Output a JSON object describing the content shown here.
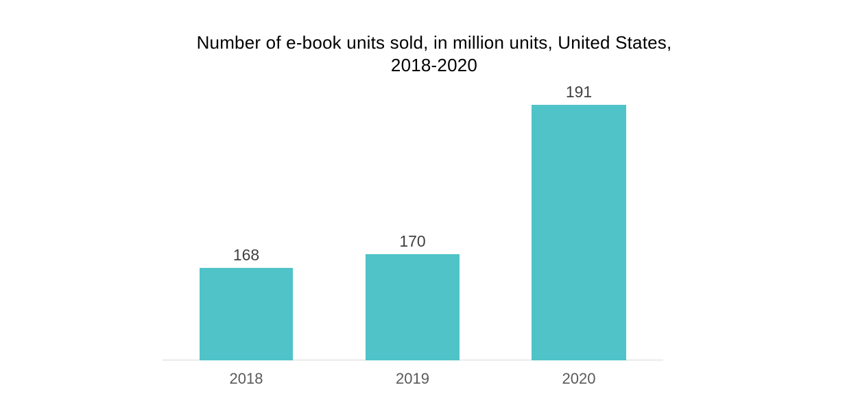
{
  "chart_data": {
    "type": "bar",
    "title": "Number of e-book units sold, in million units, United States, 2018-2020",
    "categories": [
      "2018",
      "2019",
      "2020"
    ],
    "values": [
      168,
      170,
      191
    ],
    "ylabel": "",
    "xlabel": "",
    "ylim": [
      155,
      195
    ],
    "grid": false,
    "legend": false,
    "value_labels_shown": true,
    "colors": {
      "bar": "#4FC3C8",
      "title_text": "#000000",
      "value_label": "#404040",
      "tick_label": "#595959",
      "axis_line": "#D9D9D9",
      "background": "#FFFFFF"
    }
  }
}
